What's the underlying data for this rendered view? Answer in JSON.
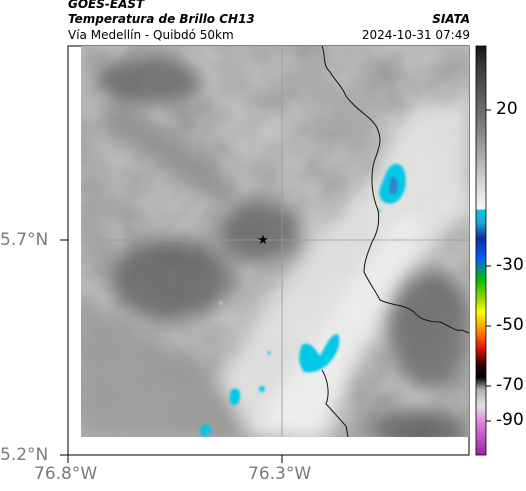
{
  "header": {
    "satellite": "GOES-EAST",
    "product": "Temperatura de Brillo CH13",
    "region": "Vía Medellín - Quibdó 50km",
    "organization": "SIATA",
    "datetime": "2024-10-31 07:49"
  },
  "map": {
    "lat_ticks": [
      {
        "label": "5.7°N",
        "value": 5.7
      },
      {
        "label": "5.2°N",
        "value": 5.2
      }
    ],
    "lon_ticks": [
      {
        "label": "76.8°W",
        "value": -76.8
      },
      {
        "label": "76.3°W",
        "value": -76.3
      }
    ],
    "marker": {
      "symbol": "★",
      "name": "star-marker"
    },
    "gridlines": true
  },
  "colorbar": {
    "ticks": [
      {
        "label": "20",
        "value": 20
      },
      {
        "label": "-30",
        "value": -30
      },
      {
        "label": "-50",
        "value": -50
      },
      {
        "label": "-70",
        "value": -70
      },
      {
        "label": "-90",
        "value": -90
      }
    ],
    "colors": {
      "warm_dark": "#151515",
      "warm_light": "#f5f5f5",
      "cyan": "#00c8e6",
      "blue": "#1030a0",
      "green": "#00c000",
      "yellow": "#ffff00",
      "red": "#e01000",
      "black": "#000000",
      "magenta": "#c040c0"
    }
  }
}
